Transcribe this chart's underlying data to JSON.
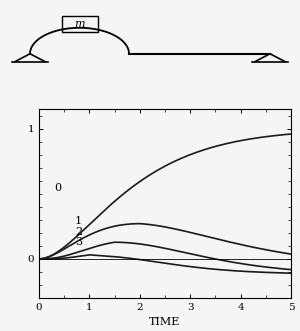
{
  "xlim": [
    0,
    5
  ],
  "ylim": [
    -0.3,
    1.15
  ],
  "xlabel": "TIME",
  "xlabel_fontsize": 8,
  "tick_fontsize": 7.5,
  "label_fontsize": 8,
  "background_color": "#f5f5f5",
  "line_color": "#1a1a1a",
  "yticks": [
    0,
    1
  ],
  "xticks": [
    0,
    1,
    2,
    3,
    4,
    5
  ]
}
